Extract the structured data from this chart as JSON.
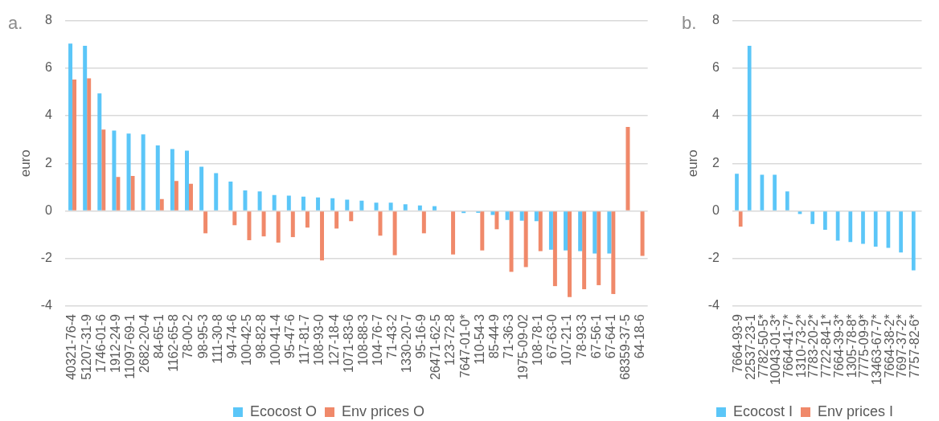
{
  "chart_data": [
    {
      "type": "bar",
      "title": "a.",
      "ylabel": "euro",
      "categories": [
        "40321-76-4",
        "51207-31-9",
        "1746-01-6",
        "1912-24-9",
        "11097-69-1",
        "2682-20-4",
        "84-65-1",
        "1162-65-8",
        "78-00-2",
        "98-95-3",
        "111-30-8",
        "94-74-6",
        "100-42-5",
        "98-82-8",
        "100-41-4",
        "95-47-6",
        "117-81-7",
        "108-93-0",
        "127-18-4",
        "1071-83-6",
        "108-88-3",
        "104-76-7",
        "71-43-2",
        "1330-20-7",
        "95-16-9",
        "26471-62-5",
        "123-72-8",
        "7647-01-0*",
        "110-54-3",
        "85-44-9",
        "71-36-3",
        "1975-09-02",
        "108-78-1",
        "67-63-0",
        "107-21-1",
        "78-93-3",
        "67-56-1",
        "67-64-1",
        "68359-37-5",
        "64-18-6"
      ],
      "series": [
        {
          "name": "Ecocost O",
          "color": "#5bc6f8",
          "values": [
            7.03,
            6.94,
            4.94,
            3.38,
            3.25,
            3.22,
            2.75,
            2.6,
            2.53,
            1.86,
            1.59,
            1.23,
            0.86,
            0.82,
            0.67,
            0.64,
            0.6,
            0.57,
            0.53,
            0.47,
            0.43,
            0.35,
            0.35,
            0.28,
            0.23,
            0.2,
            null,
            -0.09,
            -0.08,
            -0.17,
            -0.38,
            -0.41,
            -0.43,
            -1.63,
            -1.66,
            -1.69,
            -1.79,
            -1.79,
            null,
            null
          ]
        },
        {
          "name": "Env prices O",
          "color": "#f0896a",
          "values": [
            5.52,
            5.57,
            3.42,
            1.43,
            1.47,
            null,
            0.5,
            1.26,
            1.14,
            -0.94,
            null,
            -0.6,
            -1.23,
            -1.07,
            -1.33,
            -1.1,
            -0.7,
            -2.08,
            -0.74,
            -0.43,
            null,
            -1.04,
            -1.86,
            null,
            -0.94,
            null,
            -1.83,
            null,
            -1.66,
            -0.77,
            -2.56,
            -2.36,
            -1.69,
            -3.16,
            -3.62,
            -3.29,
            -3.12,
            -3.49,
            3.53,
            -1.89
          ]
        }
      ],
      "ylim": [
        -4,
        8
      ],
      "yticks": [
        -4,
        -2,
        0,
        2,
        4,
        6,
        8
      ],
      "grid": "y",
      "legend": "bottom"
    },
    {
      "type": "bar",
      "title": "b.",
      "ylabel": "euro",
      "categories": [
        "7664-93-9",
        "22537-23-1",
        "7782-50-5*",
        "10043-01-3*",
        "7664-41-7*",
        "1310-73-2*",
        "7783-20-2*",
        "7722-84-1*",
        "7664-39-3*",
        "1305-78-8*",
        "7775-09-9*",
        "13463-67-7*",
        "7664-38-2*",
        "7697-37-2*",
        "7757-82-6*"
      ],
      "series": [
        {
          "name": "Ecocost I",
          "color": "#5bc6f8",
          "values": [
            1.56,
            6.94,
            1.52,
            1.52,
            0.82,
            -0.13,
            -0.55,
            -0.79,
            -1.25,
            -1.31,
            -1.38,
            -1.5,
            -1.55,
            -1.75,
            -2.5
          ]
        },
        {
          "name": "Env prices I",
          "color": "#f0896a",
          "values": [
            -0.66,
            null,
            null,
            null,
            null,
            null,
            null,
            null,
            null,
            null,
            null,
            null,
            null,
            null,
            null
          ]
        }
      ],
      "ylim": [
        -4,
        8
      ],
      "yticks": [
        -4,
        -2,
        0,
        2,
        4,
        6,
        8
      ],
      "grid": "y",
      "legend": "bottom"
    }
  ]
}
